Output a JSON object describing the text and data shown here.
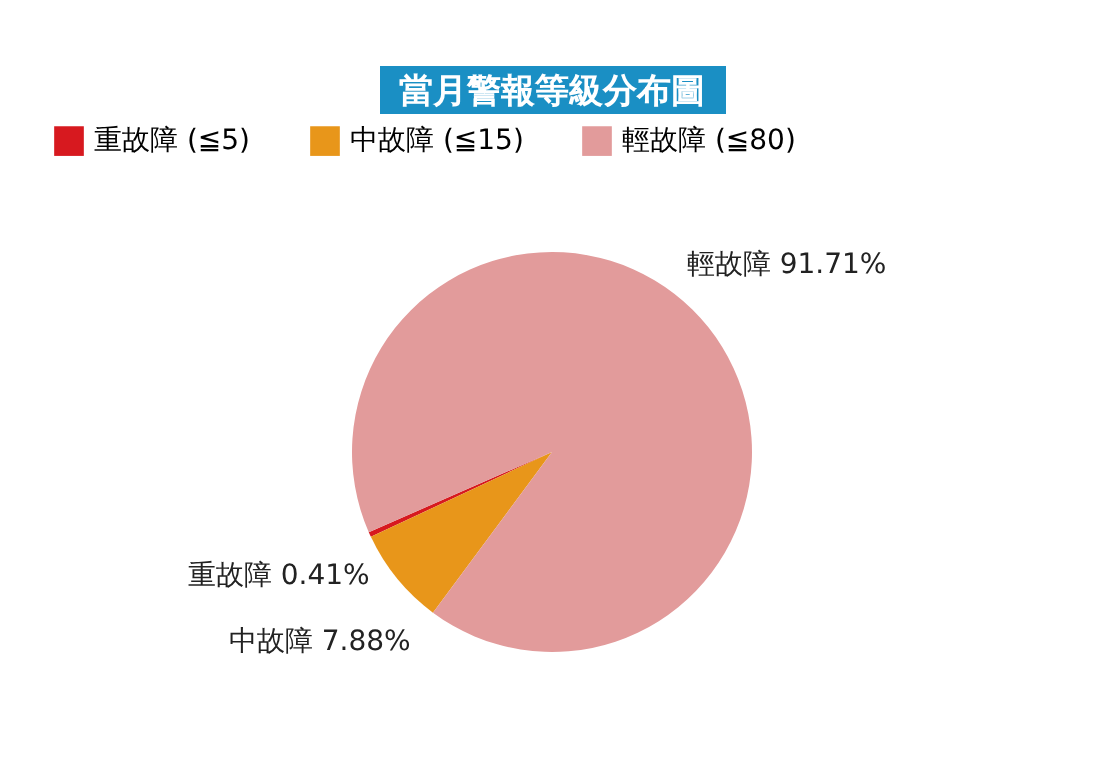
{
  "chart_data": {
    "type": "pie",
    "title": "當月警報等級分布圖",
    "categories": [
      "重故障 (≦5)",
      "中故障 (≦15)",
      "輕故障 (≦80)"
    ],
    "values": [
      0.41,
      7.88,
      91.71
    ],
    "colors": [
      "#d7191f",
      "#e8961a",
      "#e29b9b"
    ],
    "value_labels": [
      "重故障 0.41%",
      "中故障 7.88%",
      "輕故障 91.71%"
    ],
    "legend": "top"
  }
}
